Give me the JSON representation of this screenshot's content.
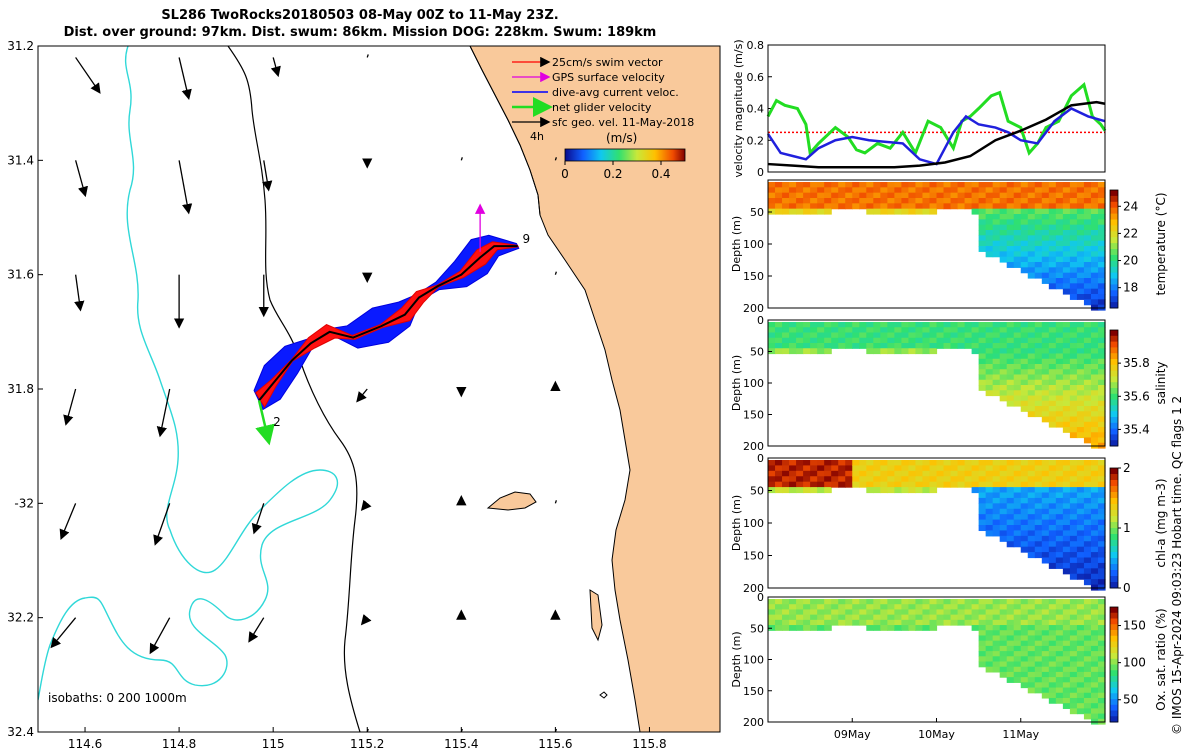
{
  "header": {
    "title_line1": "SL286 TwoRocks20180503 08-May 00Z to 11-May 23Z.",
    "title_line2": "Dist. over ground: 97km. Dist. swum: 86km. Mission DOG: 228km. Swum: 189km"
  },
  "footer": {
    "note": "© IMOS 15-Apr-2024 09:03:23 Hobart time. QC flags 1  2"
  },
  "colors": {
    "land": "#f9c99b",
    "isobath_shallow": "#000000",
    "isobath_deep": "#30d8d8",
    "swim": "#ff0000",
    "gps": "#e000e0",
    "current": "#0000ff",
    "net": "#00dd00",
    "sfc": "#000000",
    "threshold": "#ff0000"
  },
  "chart_data": [
    {
      "type": "map",
      "xlim": [
        114.5,
        115.95
      ],
      "ylim": [
        -32.4,
        -31.2
      ],
      "x_ticks": [
        114.6,
        114.8,
        115,
        115.2,
        115.4,
        115.6,
        115.8
      ],
      "x_tick_labels": [
        "114.6",
        "114.8",
        "115",
        "115.2",
        "115.4",
        "115.6",
        "115.8"
      ],
      "y_ticks": [
        -31.2,
        -31.4,
        -31.6,
        -31.8,
        -32,
        -32.2,
        -32.4
      ],
      "y_tick_labels": [
        "31.2",
        "31.4",
        "31.6",
        "31.8",
        "-32",
        "32.2",
        "32.4"
      ],
      "legend": {
        "items": [
          "25cm/s swim vector",
          "GPS surface velocity",
          "dive-avg current veloc.",
          "net glider velocity",
          "sfc geo. vel. 11-May-2018"
        ],
        "unit": "(m/s)",
        "colorbar_ticks": [
          "0",
          "0.2",
          "0.4"
        ],
        "colorbar_range": [
          0,
          0.5
        ],
        "extra_label": "4h"
      },
      "isobaths_label": "isobaths: 0   200  1000m",
      "track": [
        [
          114.97,
          -31.82
        ],
        [
          115.0,
          -31.79
        ],
        [
          115.04,
          -31.75
        ],
        [
          115.08,
          -31.72
        ],
        [
          115.12,
          -31.7
        ],
        [
          115.17,
          -31.71
        ],
        [
          115.23,
          -31.69
        ],
        [
          115.28,
          -31.67
        ],
        [
          115.31,
          -31.64
        ],
        [
          115.35,
          -31.62
        ],
        [
          115.4,
          -31.6
        ],
        [
          115.44,
          -31.57
        ],
        [
          115.47,
          -31.55
        ],
        [
          115.52,
          -31.55
        ]
      ],
      "track_labels": [
        {
          "text": "2",
          "lon": 115.0,
          "lat": -31.865
        },
        {
          "text": "9",
          "lon": 115.53,
          "lat": -31.545
        }
      ],
      "net_velocity_vector": {
        "lon": 114.97,
        "lat": -31.82,
        "dlon": 0.02,
        "dlat": -0.07
      },
      "gps_vector": {
        "lon": 115.44,
        "lat": -31.56,
        "dlon": 0.0,
        "dlat": 0.08
      },
      "sfc_vectors": [
        {
          "lon": 114.58,
          "lat": -31.22,
          "u": 0.05,
          "v": -0.06
        },
        {
          "lon": 114.8,
          "lat": -31.22,
          "u": 0.02,
          "v": -0.07
        },
        {
          "lon": 115.0,
          "lat": -31.22,
          "u": 0.01,
          "v": -0.03
        },
        {
          "lon": 115.2,
          "lat": -31.22,
          "u": 0.0,
          "v": -0.005
        },
        {
          "lon": 114.58,
          "lat": -31.4,
          "u": 0.02,
          "v": -0.06
        },
        {
          "lon": 114.8,
          "lat": -31.4,
          "u": 0.02,
          "v": -0.09
        },
        {
          "lon": 114.98,
          "lat": -31.4,
          "u": 0.01,
          "v": -0.05
        },
        {
          "lon": 115.2,
          "lat": -31.4,
          "u": 0.0,
          "v": -0.01
        },
        {
          "lon": 115.4,
          "lat": -31.4,
          "u": 0.0,
          "v": 0.0
        },
        {
          "lon": 115.6,
          "lat": -31.4,
          "u": 0.0,
          "v": 0.0
        },
        {
          "lon": 114.58,
          "lat": -31.6,
          "u": 0.01,
          "v": -0.06
        },
        {
          "lon": 114.8,
          "lat": -31.6,
          "u": 0.0,
          "v": -0.09
        },
        {
          "lon": 114.98,
          "lat": -31.6,
          "u": 0.0,
          "v": -0.07
        },
        {
          "lon": 115.2,
          "lat": -31.6,
          "u": 0.0,
          "v": -0.01
        },
        {
          "lon": 115.6,
          "lat": -31.6,
          "u": 0.0,
          "v": 0.0
        },
        {
          "lon": 114.58,
          "lat": -31.8,
          "u": -0.02,
          "v": -0.06
        },
        {
          "lon": 114.78,
          "lat": -31.8,
          "u": -0.02,
          "v": -0.08
        },
        {
          "lon": 115.2,
          "lat": -31.8,
          "u": -0.02,
          "v": -0.02
        },
        {
          "lon": 115.4,
          "lat": -31.8,
          "u": 0.0,
          "v": -0.01
        },
        {
          "lon": 115.6,
          "lat": -31.8,
          "u": 0.0,
          "v": 0.01
        },
        {
          "lon": 114.58,
          "lat": -32.0,
          "u": -0.03,
          "v": -0.06
        },
        {
          "lon": 114.78,
          "lat": -32.0,
          "u": -0.03,
          "v": -0.07
        },
        {
          "lon": 114.98,
          "lat": -32.0,
          "u": -0.02,
          "v": -0.05
        },
        {
          "lon": 115.2,
          "lat": -32.0,
          "u": -0.01,
          "v": -0.01
        },
        {
          "lon": 115.4,
          "lat": -32.0,
          "u": 0.0,
          "v": 0.01
        },
        {
          "lon": 115.6,
          "lat": -32.0,
          "u": 0.0,
          "v": 0.0
        },
        {
          "lon": 114.58,
          "lat": -32.2,
          "u": -0.05,
          "v": -0.05
        },
        {
          "lon": 114.78,
          "lat": -32.2,
          "u": -0.04,
          "v": -0.06
        },
        {
          "lon": 114.98,
          "lat": -32.2,
          "u": -0.03,
          "v": -0.04
        },
        {
          "lon": 115.2,
          "lat": -32.2,
          "u": -0.01,
          "v": -0.01
        },
        {
          "lon": 115.4,
          "lat": -32.2,
          "u": 0.0,
          "v": 0.01
        },
        {
          "lon": 115.6,
          "lat": -32.2,
          "u": 0.0,
          "v": 0.01
        },
        {
          "lon": 115.2,
          "lat": -32.4,
          "u": 0.0,
          "v": 0.0
        },
        {
          "lon": 115.4,
          "lat": -32.4,
          "u": 0.0,
          "v": 0.0
        },
        {
          "lon": 115.6,
          "lat": -32.4,
          "u": 0.0,
          "v": 0.0
        }
      ]
    },
    {
      "type": "line",
      "ylabel": "velocity magnitude (m/s)",
      "ylim": [
        0,
        0.8
      ],
      "y_ticks": [
        0,
        0.2,
        0.4,
        0.6,
        0.8
      ],
      "xlim": [
        0,
        4
      ],
      "threshold": 0.25,
      "series": [
        {
          "name": "net glider velocity",
          "color": "#22dd22",
          "x": [
            0,
            0.1,
            0.2,
            0.35,
            0.45,
            0.5,
            0.6,
            0.8,
            0.95,
            1.05,
            1.15,
            1.3,
            1.45,
            1.6,
            1.75,
            1.9,
            2.05,
            2.2,
            2.3,
            2.4,
            2.5,
            2.65,
            2.75,
            2.85,
            3.0,
            3.1,
            3.2,
            3.3,
            3.45,
            3.6,
            3.75,
            3.85,
            3.95,
            4.0
          ],
          "y": [
            0.35,
            0.45,
            0.42,
            0.4,
            0.3,
            0.12,
            0.18,
            0.28,
            0.22,
            0.14,
            0.12,
            0.18,
            0.15,
            0.25,
            0.12,
            0.32,
            0.28,
            0.15,
            0.32,
            0.35,
            0.4,
            0.48,
            0.5,
            0.32,
            0.28,
            0.12,
            0.18,
            0.28,
            0.32,
            0.48,
            0.55,
            0.35,
            0.3,
            0.26
          ]
        },
        {
          "name": "dive-avg current veloc.",
          "color": "#2020dd",
          "x": [
            0,
            0.15,
            0.3,
            0.45,
            0.6,
            0.8,
            1.0,
            1.2,
            1.4,
            1.6,
            1.8,
            2.0,
            2.2,
            2.35,
            2.5,
            2.7,
            2.85,
            3.0,
            3.2,
            3.4,
            3.6,
            3.8,
            4.0
          ],
          "y": [
            0.24,
            0.12,
            0.1,
            0.08,
            0.15,
            0.2,
            0.22,
            0.2,
            0.19,
            0.18,
            0.08,
            0.05,
            0.25,
            0.35,
            0.3,
            0.28,
            0.25,
            0.2,
            0.18,
            0.32,
            0.4,
            0.35,
            0.32
          ]
        },
        {
          "name": "sfc geo. vel.",
          "color": "#000000",
          "x": [
            0,
            0.3,
            0.6,
            0.9,
            1.2,
            1.5,
            1.8,
            2.1,
            2.4,
            2.7,
            3.0,
            3.3,
            3.6,
            3.9,
            4.0
          ],
          "y": [
            0.05,
            0.04,
            0.03,
            0.03,
            0.03,
            0.03,
            0.04,
            0.06,
            0.1,
            0.2,
            0.26,
            0.33,
            0.42,
            0.44,
            0.43
          ]
        }
      ]
    },
    {
      "type": "heatmap",
      "panels": [
        {
          "label": "temperature (°C)",
          "ylabel": "Depth (m)",
          "cb_ticks": [
            18,
            20,
            22,
            24
          ],
          "range": [
            16.5,
            25.2
          ],
          "y_ticks": [
            50,
            100,
            150,
            200
          ],
          "show_x": false
        },
        {
          "label": "salinity",
          "ylabel": "Depth (m)",
          "cb_ticks": [
            35.4,
            35.6,
            35.8
          ],
          "range": [
            35.3,
            36.0
          ],
          "y_ticks": [
            0,
            50,
            100,
            150,
            200
          ],
          "show_x": false
        },
        {
          "label": "chl-a (mg m-3)",
          "ylabel": "Depth (m)",
          "cb_ticks": [
            0,
            1,
            2
          ],
          "range": [
            0,
            2
          ],
          "y_ticks": [
            0,
            50,
            100,
            150,
            200
          ],
          "show_x": false
        },
        {
          "label": "Ox. sat. ratio (%)",
          "ylabel": "Depth (m)",
          "cb_ticks": [
            50,
            100,
            150
          ],
          "range": [
            20,
            175
          ],
          "y_ticks": [
            0,
            50,
            100,
            150,
            200
          ],
          "show_x": true
        }
      ],
      "ylim": [
        0,
        200
      ],
      "x_tick_labels": [
        "09May",
        "10May",
        "11May"
      ],
      "x_tick_positions": [
        1,
        2,
        3
      ]
    }
  ]
}
